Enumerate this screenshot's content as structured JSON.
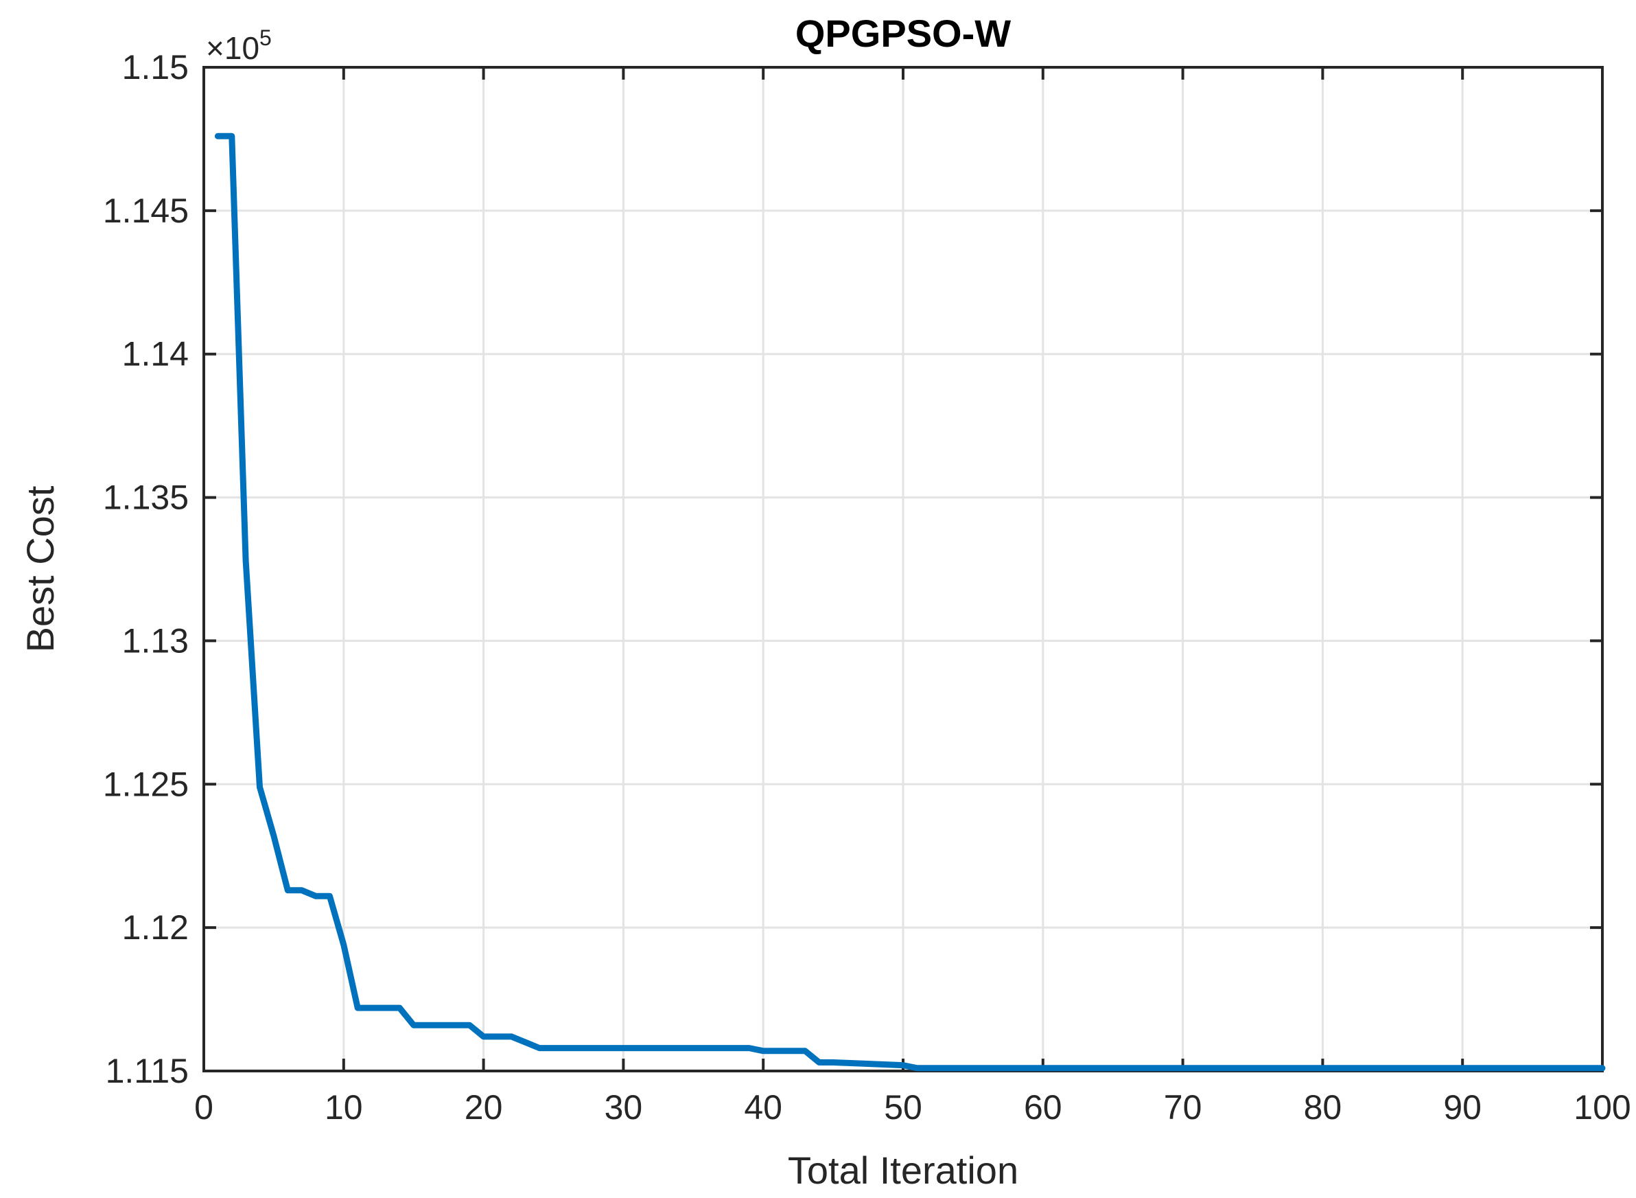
{
  "chart_data": {
    "type": "line",
    "title": "QPGPSO-W",
    "xlabel": "Total Iteration",
    "ylabel": "Best Cost",
    "xlim": [
      0,
      100
    ],
    "ylim": [
      1.115,
      1.15
    ],
    "xticks": [
      "0",
      "10",
      "20",
      "30",
      "40",
      "50",
      "60",
      "70",
      "80",
      "90",
      "100"
    ],
    "yticks": [
      "1.115",
      "1.12",
      "1.125",
      "1.13",
      "1.135",
      "1.14",
      "1.145",
      "1.15"
    ],
    "y_multiplier": {
      "base": "×10",
      "exponent": "5"
    },
    "grid": true,
    "line_color": "#0072BD",
    "series": [
      {
        "x": [
          1,
          2,
          3,
          4,
          5,
          6,
          7,
          8,
          9,
          10,
          11,
          12,
          13,
          14,
          15,
          16,
          17,
          18,
          19,
          20,
          21,
          22,
          23,
          24,
          25,
          30,
          35,
          39,
          40,
          41,
          42,
          43,
          44,
          45,
          50,
          51,
          60,
          70,
          80,
          90,
          100
        ],
        "y": [
          1.1476,
          1.1476,
          1.1328,
          1.1249,
          1.1232,
          1.1213,
          1.1213,
          1.1211,
          1.1211,
          1.1194,
          1.1172,
          1.1172,
          1.1172,
          1.1172,
          1.1166,
          1.1166,
          1.1166,
          1.1166,
          1.1166,
          1.1162,
          1.1162,
          1.1162,
          1.116,
          1.1158,
          1.1158,
          1.1158,
          1.1158,
          1.1158,
          1.1157,
          1.1157,
          1.1157,
          1.1157,
          1.1153,
          1.1153,
          1.1152,
          1.1151,
          1.1151,
          1.1151,
          1.1151,
          1.1151,
          1.1151
        ]
      }
    ]
  }
}
